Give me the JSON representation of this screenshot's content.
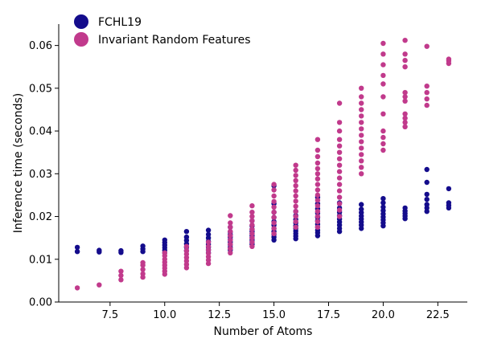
{
  "chart_data": {
    "type": "scatter",
    "title": "",
    "xlabel": "Number of Atoms",
    "ylabel": "Inference time (seconds)",
    "xlim": [
      5.15,
      23.85
    ],
    "ylim": [
      0,
      0.065
    ],
    "xticks": [
      7.5,
      10.0,
      12.5,
      15.0,
      17.5,
      20.0,
      22.5
    ],
    "xtick_labels": [
      "7.5",
      "10.0",
      "12.5",
      "15.0",
      "17.5",
      "20.0",
      "22.5"
    ],
    "yticks": [
      0,
      0.01,
      0.02,
      0.03,
      0.04,
      0.05,
      0.06
    ],
    "ytick_labels": [
      "0.00",
      "0.01",
      "0.02",
      "0.03",
      "0.04",
      "0.05",
      "0.06"
    ],
    "grid": false,
    "legend_position": "top-left",
    "series": [
      {
        "name": "FCHL19",
        "color": "#140c8c",
        "points": [
          [
            6,
            0.0118
          ],
          [
            6,
            0.0128
          ],
          [
            7,
            0.0117
          ],
          [
            7,
            0.0121
          ],
          [
            8,
            0.0116
          ],
          [
            8,
            0.012
          ],
          [
            9,
            0.0118
          ],
          [
            9,
            0.0124
          ],
          [
            9,
            0.0131
          ],
          [
            10,
            0.0115
          ],
          [
            10,
            0.0121
          ],
          [
            10,
            0.0127
          ],
          [
            10,
            0.0133
          ],
          [
            10,
            0.0139
          ],
          [
            10,
            0.0145
          ],
          [
            11,
            0.012
          ],
          [
            11,
            0.0128
          ],
          [
            11,
            0.0136
          ],
          [
            11,
            0.0144
          ],
          [
            11,
            0.0152
          ],
          [
            11,
            0.0165
          ],
          [
            12,
            0.0115
          ],
          [
            12,
            0.0122
          ],
          [
            12,
            0.0128
          ],
          [
            12,
            0.0135
          ],
          [
            12,
            0.0142
          ],
          [
            12,
            0.015
          ],
          [
            12,
            0.0158
          ],
          [
            12,
            0.0168
          ],
          [
            13,
            0.0122
          ],
          [
            13,
            0.0128
          ],
          [
            13,
            0.0134
          ],
          [
            13,
            0.014
          ],
          [
            13,
            0.0146
          ],
          [
            13,
            0.0152
          ],
          [
            13,
            0.0158
          ],
          [
            13,
            0.0164
          ],
          [
            13,
            0.0175
          ],
          [
            14,
            0.0135
          ],
          [
            14,
            0.014
          ],
          [
            14,
            0.0145
          ],
          [
            14,
            0.015
          ],
          [
            14,
            0.0155
          ],
          [
            14,
            0.016
          ],
          [
            14,
            0.0165
          ],
          [
            14,
            0.017
          ],
          [
            14,
            0.0178
          ],
          [
            14,
            0.019
          ],
          [
            15,
            0.0145
          ],
          [
            15,
            0.0152
          ],
          [
            15,
            0.0158
          ],
          [
            15,
            0.0165
          ],
          [
            15,
            0.0172
          ],
          [
            15,
            0.018
          ],
          [
            15,
            0.0188
          ],
          [
            15,
            0.0198
          ],
          [
            15,
            0.021
          ],
          [
            15,
            0.023
          ],
          [
            15,
            0.0272
          ],
          [
            16,
            0.0148
          ],
          [
            16,
            0.0154
          ],
          [
            16,
            0.016
          ],
          [
            16,
            0.0166
          ],
          [
            16,
            0.0172
          ],
          [
            16,
            0.0178
          ],
          [
            16,
            0.0185
          ],
          [
            16,
            0.0193
          ],
          [
            16,
            0.0202
          ],
          [
            16,
            0.0212
          ],
          [
            17,
            0.0155
          ],
          [
            17,
            0.0162
          ],
          [
            17,
            0.0168
          ],
          [
            17,
            0.0175
          ],
          [
            17,
            0.0182
          ],
          [
            17,
            0.019
          ],
          [
            17,
            0.0198
          ],
          [
            17,
            0.0208
          ],
          [
            17,
            0.0218
          ],
          [
            17,
            0.023
          ],
          [
            17,
            0.0245
          ],
          [
            18,
            0.0165
          ],
          [
            18,
            0.0172
          ],
          [
            18,
            0.018
          ],
          [
            18,
            0.0187
          ],
          [
            18,
            0.0194
          ],
          [
            18,
            0.0202
          ],
          [
            18,
            0.021
          ],
          [
            18,
            0.022
          ],
          [
            18,
            0.0232
          ],
          [
            19,
            0.0172
          ],
          [
            19,
            0.018
          ],
          [
            19,
            0.0187
          ],
          [
            19,
            0.0194
          ],
          [
            19,
            0.0201
          ],
          [
            19,
            0.0209
          ],
          [
            19,
            0.0217
          ],
          [
            19,
            0.0228
          ],
          [
            20,
            0.0178
          ],
          [
            20,
            0.0185
          ],
          [
            20,
            0.0192
          ],
          [
            20,
            0.0199
          ],
          [
            20,
            0.0206
          ],
          [
            20,
            0.0214
          ],
          [
            20,
            0.0222
          ],
          [
            20,
            0.0232
          ],
          [
            20,
            0.0242
          ],
          [
            21,
            0.0195
          ],
          [
            21,
            0.0201
          ],
          [
            21,
            0.0207
          ],
          [
            21,
            0.0213
          ],
          [
            21,
            0.022
          ],
          [
            22,
            0.0212
          ],
          [
            22,
            0.022
          ],
          [
            22,
            0.0228
          ],
          [
            22,
            0.024
          ],
          [
            22,
            0.0252
          ],
          [
            22,
            0.028
          ],
          [
            22,
            0.031
          ],
          [
            23,
            0.022
          ],
          [
            23,
            0.0226
          ],
          [
            23,
            0.0232
          ],
          [
            23,
            0.0265
          ]
        ]
      },
      {
        "name": "Invariant Random Features",
        "color": "#c13a8c",
        "points": [
          [
            6,
            0.0033
          ],
          [
            7,
            0.004
          ],
          [
            8,
            0.0052
          ],
          [
            8,
            0.0062
          ],
          [
            8,
            0.0072
          ],
          [
            9,
            0.0058
          ],
          [
            9,
            0.0066
          ],
          [
            9,
            0.0076
          ],
          [
            9,
            0.0086
          ],
          [
            9,
            0.0092
          ],
          [
            10,
            0.0065
          ],
          [
            10,
            0.0072
          ],
          [
            10,
            0.0079
          ],
          [
            10,
            0.0086
          ],
          [
            10,
            0.0093
          ],
          [
            10,
            0.01
          ],
          [
            10,
            0.0108
          ],
          [
            10,
            0.0115
          ],
          [
            11,
            0.008
          ],
          [
            11,
            0.0088
          ],
          [
            11,
            0.0096
          ],
          [
            11,
            0.0104
          ],
          [
            11,
            0.0112
          ],
          [
            11,
            0.012
          ],
          [
            11,
            0.013
          ],
          [
            12,
            0.009
          ],
          [
            12,
            0.0098
          ],
          [
            12,
            0.0106
          ],
          [
            12,
            0.0114
          ],
          [
            12,
            0.0122
          ],
          [
            12,
            0.013
          ],
          [
            12,
            0.014
          ],
          [
            13,
            0.0115
          ],
          [
            13,
            0.0125
          ],
          [
            13,
            0.0135
          ],
          [
            13,
            0.0145
          ],
          [
            13,
            0.0155
          ],
          [
            13,
            0.0165
          ],
          [
            13,
            0.0175
          ],
          [
            13,
            0.0185
          ],
          [
            13,
            0.0202
          ],
          [
            14,
            0.013
          ],
          [
            14,
            0.014
          ],
          [
            14,
            0.015
          ],
          [
            14,
            0.016
          ],
          [
            14,
            0.017
          ],
          [
            14,
            0.018
          ],
          [
            14,
            0.019
          ],
          [
            14,
            0.02
          ],
          [
            14,
            0.021
          ],
          [
            14,
            0.0225
          ],
          [
            15,
            0.016
          ],
          [
            15,
            0.0172
          ],
          [
            15,
            0.0185
          ],
          [
            15,
            0.0198
          ],
          [
            15,
            0.021
          ],
          [
            15,
            0.0222
          ],
          [
            15,
            0.0235
          ],
          [
            15,
            0.0248
          ],
          [
            15,
            0.0262
          ],
          [
            15,
            0.0275
          ],
          [
            16,
            0.0175
          ],
          [
            16,
            0.0188
          ],
          [
            16,
            0.02
          ],
          [
            16,
            0.0212
          ],
          [
            16,
            0.0224
          ],
          [
            16,
            0.0236
          ],
          [
            16,
            0.0248
          ],
          [
            16,
            0.026
          ],
          [
            16,
            0.0272
          ],
          [
            16,
            0.0284
          ],
          [
            16,
            0.0296
          ],
          [
            16,
            0.0308
          ],
          [
            16,
            0.032
          ],
          [
            17,
            0.0175
          ],
          [
            17,
            0.0188
          ],
          [
            17,
            0.02
          ],
          [
            17,
            0.0212
          ],
          [
            17,
            0.0225
          ],
          [
            17,
            0.0238
          ],
          [
            17,
            0.025
          ],
          [
            17,
            0.0262
          ],
          [
            17,
            0.0275
          ],
          [
            17,
            0.0288
          ],
          [
            17,
            0.03
          ],
          [
            17,
            0.0312
          ],
          [
            17,
            0.0325
          ],
          [
            17,
            0.034
          ],
          [
            17,
            0.0355
          ],
          [
            17,
            0.038
          ],
          [
            18,
            0.02
          ],
          [
            18,
            0.0215
          ],
          [
            18,
            0.023
          ],
          [
            18,
            0.0245
          ],
          [
            18,
            0.026
          ],
          [
            18,
            0.0275
          ],
          [
            18,
            0.029
          ],
          [
            18,
            0.0305
          ],
          [
            18,
            0.032
          ],
          [
            18,
            0.0335
          ],
          [
            18,
            0.035
          ],
          [
            18,
            0.0365
          ],
          [
            18,
            0.038
          ],
          [
            18,
            0.04
          ],
          [
            18,
            0.042
          ],
          [
            18,
            0.0465
          ],
          [
            19,
            0.03
          ],
          [
            19,
            0.0315
          ],
          [
            19,
            0.033
          ],
          [
            19,
            0.0345
          ],
          [
            19,
            0.036
          ],
          [
            19,
            0.0375
          ],
          [
            19,
            0.039
          ],
          [
            19,
            0.0405
          ],
          [
            19,
            0.042
          ],
          [
            19,
            0.0435
          ],
          [
            19,
            0.045
          ],
          [
            19,
            0.0465
          ],
          [
            19,
            0.048
          ],
          [
            19,
            0.05
          ],
          [
            20,
            0.0355
          ],
          [
            20,
            0.037
          ],
          [
            20,
            0.0385
          ],
          [
            20,
            0.04
          ],
          [
            20,
            0.044
          ],
          [
            20,
            0.048
          ],
          [
            20,
            0.051
          ],
          [
            20,
            0.053
          ],
          [
            20,
            0.0555
          ],
          [
            20,
            0.058
          ],
          [
            20,
            0.0605
          ],
          [
            21,
            0.041
          ],
          [
            21,
            0.042
          ],
          [
            21,
            0.043
          ],
          [
            21,
            0.044
          ],
          [
            21,
            0.047
          ],
          [
            21,
            0.048
          ],
          [
            21,
            0.049
          ],
          [
            21,
            0.055
          ],
          [
            21,
            0.0565
          ],
          [
            21,
            0.058
          ],
          [
            21,
            0.0612
          ],
          [
            22,
            0.046
          ],
          [
            22,
            0.0475
          ],
          [
            22,
            0.049
          ],
          [
            22,
            0.0505
          ],
          [
            22,
            0.0598
          ],
          [
            23,
            0.0558
          ],
          [
            23,
            0.0564
          ],
          [
            23,
            0.0568
          ]
        ]
      }
    ]
  }
}
